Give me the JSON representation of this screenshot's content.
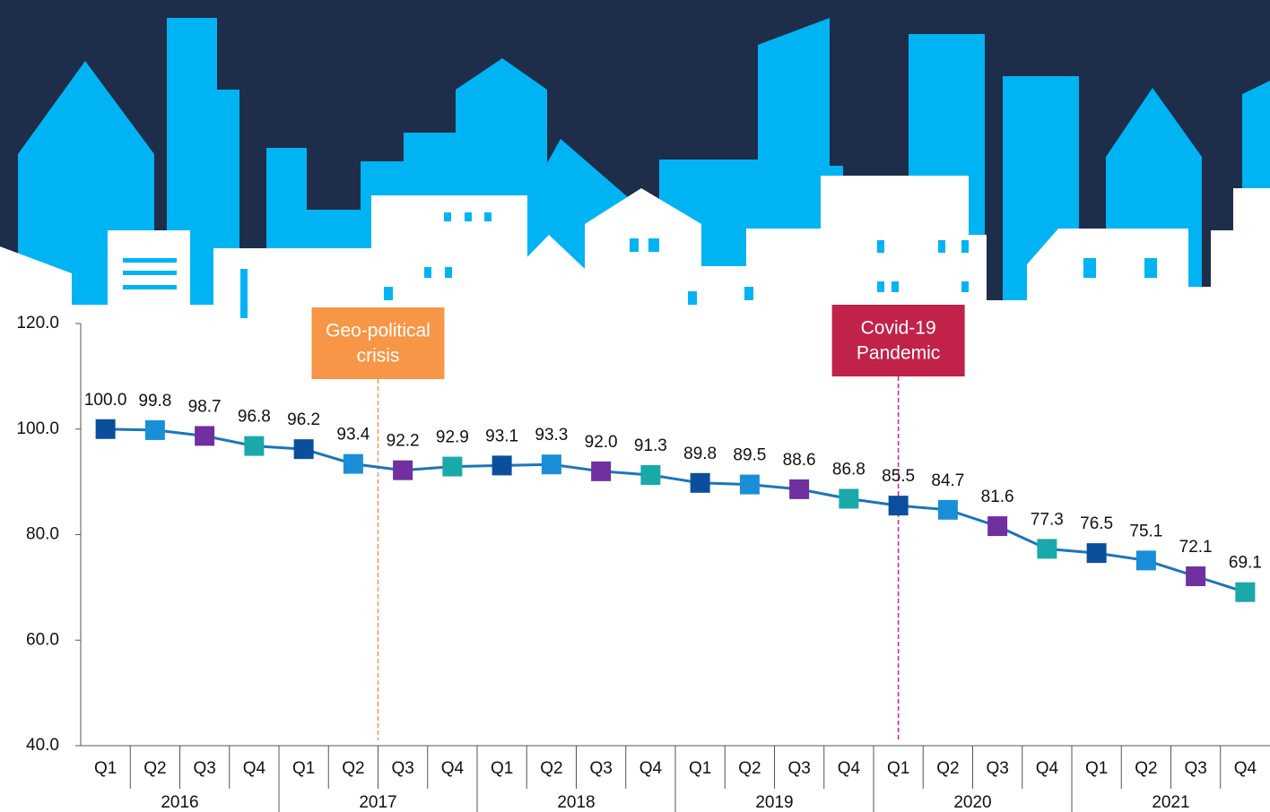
{
  "chart_data": {
    "type": "line",
    "categories": [
      "Q1",
      "Q2",
      "Q3",
      "Q4",
      "Q1",
      "Q2",
      "Q3",
      "Q4",
      "Q1",
      "Q2",
      "Q3",
      "Q4",
      "Q1",
      "Q2",
      "Q3",
      "Q4",
      "Q1",
      "Q2",
      "Q3",
      "Q4",
      "Q1",
      "Q2",
      "Q3",
      "Q4"
    ],
    "groups": [
      "2016",
      "2017",
      "2018",
      "2019",
      "2020",
      "2021"
    ],
    "series": [
      {
        "color": "#1b75bb",
        "values": [
          100.0,
          99.8,
          98.7,
          96.8,
          96.2,
          93.4,
          92.2,
          92.9,
          93.1,
          93.3,
          92.0,
          91.3,
          89.8,
          89.5,
          88.6,
          86.8,
          85.5,
          84.7,
          81.6,
          77.3,
          76.5,
          75.1,
          72.1,
          69.1
        ],
        "value_labels": [
          "100.0",
          "99.8",
          "98.7",
          "96.8",
          "96.2",
          "93.4",
          "92.2",
          "92.9",
          "93.1",
          "93.3",
          "92.0",
          "91.3",
          "89.8",
          "89.5",
          "88.6",
          "86.8",
          "85.5",
          "84.7",
          "81.6",
          "77.3",
          "76.5",
          "75.1",
          "72.1",
          "69.1"
        ],
        "marker_colors": [
          "#0b4f9c",
          "#1a8fd8",
          "#7030a0",
          "#1aa9a9",
          "#0b4f9c",
          "#1a8fd8",
          "#7030a0",
          "#1aa9a9",
          "#0b4f9c",
          "#1a8fd8",
          "#7030a0",
          "#1aa9a9",
          "#0b4f9c",
          "#1a8fd8",
          "#7030a0",
          "#1aa9a9",
          "#0b4f9c",
          "#1a8fd8",
          "#7030a0",
          "#1aa9a9",
          "#0b4f9c",
          "#1a8fd8",
          "#7030a0",
          "#1aa9a9"
        ]
      }
    ],
    "ylim": [
      40,
      120
    ],
    "yticks": [
      {
        "value": 40,
        "label": "40.0"
      },
      {
        "value": 60,
        "label": "60.0"
      },
      {
        "value": 80,
        "label": "80.0"
      },
      {
        "value": 100,
        "label": "100.0"
      },
      {
        "value": 120,
        "label": "120.0"
      }
    ],
    "annotations": [
      {
        "lines": [
          "Geo-political",
          "crisis"
        ],
        "color": "#f79646",
        "line_color": "#f79646"
      },
      {
        "lines": [
          "Covid-19",
          "Pandemic"
        ],
        "color": "#c0224a",
        "line_color": "#d0209a"
      }
    ]
  }
}
